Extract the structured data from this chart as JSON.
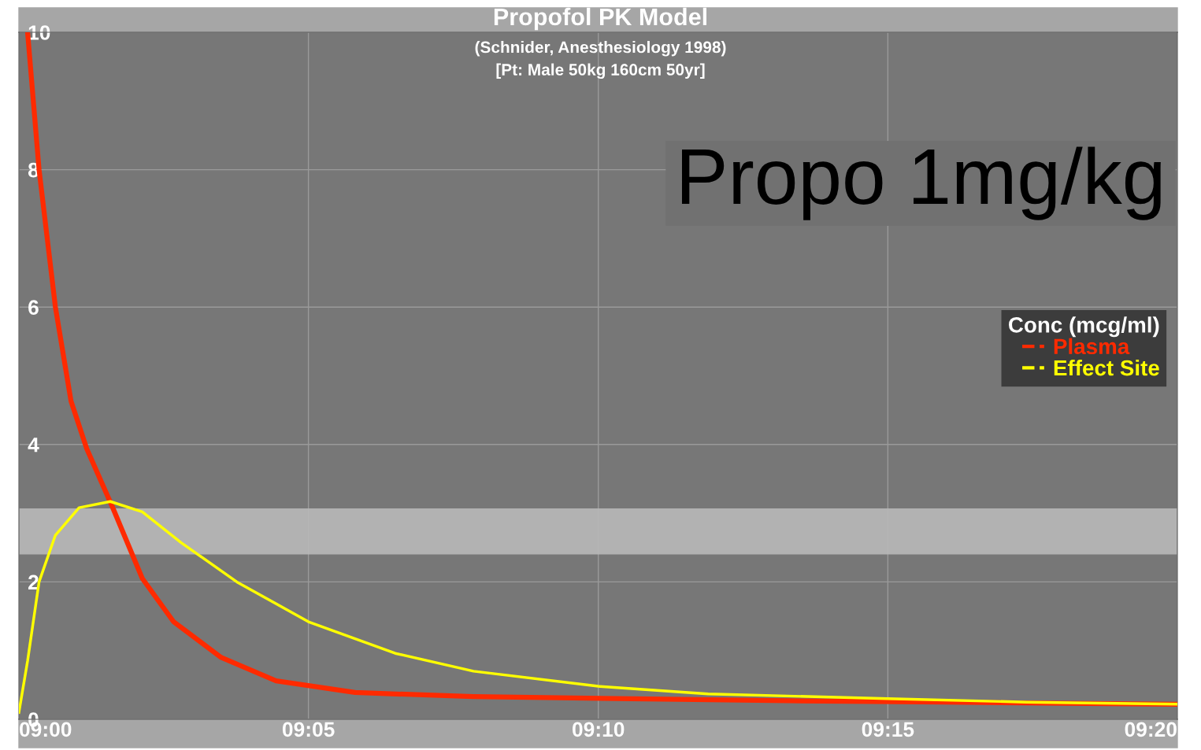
{
  "chart_data": {
    "type": "line",
    "title": "Propofol PK Model",
    "subtitle": "(Schnider, Anesthesiology 1998)\n[Pt: Male 50kg 160cm 50yr]",
    "legend_title": "Conc (mcg/ml)",
    "annotations": [
      "Propo 1mg/kg"
    ],
    "series": [
      {
        "name": "Plasma",
        "color": "#ff2a00",
        "x": [
          9.0025,
          9.0058,
          9.0105,
          9.015,
          9.0195,
          9.027,
          9.0355,
          9.0445,
          9.0582,
          9.074,
          9.0967,
          9.1308,
          9.1762,
          9.2217,
          9.2667,
          9.3333
        ],
        "values": [
          10,
          8.0,
          6.0,
          4.63,
          3.94,
          3.08,
          2.05,
          1.42,
          0.9,
          0.56,
          0.39,
          0.33,
          0.3,
          0.27,
          0.25,
          0.22
        ]
      },
      {
        "name": "Effect Site",
        "color": "#ffff00",
        "x": [
          9.0,
          9.0025,
          9.0058,
          9.0105,
          9.0173,
          9.0263,
          9.0355,
          9.0467,
          9.0627,
          9.0833,
          9.1083,
          9.1308,
          9.1667,
          9.1983,
          9.25,
          9.29,
          9.3333
        ],
        "values": [
          0.1,
          0.85,
          2.0,
          2.68,
          3.08,
          3.17,
          3.02,
          2.57,
          2.0,
          1.42,
          0.96,
          0.7,
          0.48,
          0.37,
          0.3,
          0.25,
          0.22
        ]
      }
    ],
    "xlim": [
      9.0,
      9.3333
    ],
    "xticks": [
      {
        "value": 9.0,
        "label": "09:00"
      },
      {
        "value": 9.0833,
        "label": "09:05"
      },
      {
        "value": 9.1667,
        "label": "09:10"
      },
      {
        "value": 9.25,
        "label": "09:15"
      },
      {
        "value": 9.3333,
        "label": "09:20"
      }
    ],
    "ylim": [
      0,
      10
    ],
    "yticks": [
      0,
      2,
      4,
      6,
      8,
      10
    ],
    "bands": [
      {
        "axis": "y",
        "from": 2.4,
        "to": 3.07,
        "color": "#b8b8b8"
      }
    ],
    "grid": true,
    "legend": "right",
    "line_style": "solid",
    "marker": "none"
  }
}
